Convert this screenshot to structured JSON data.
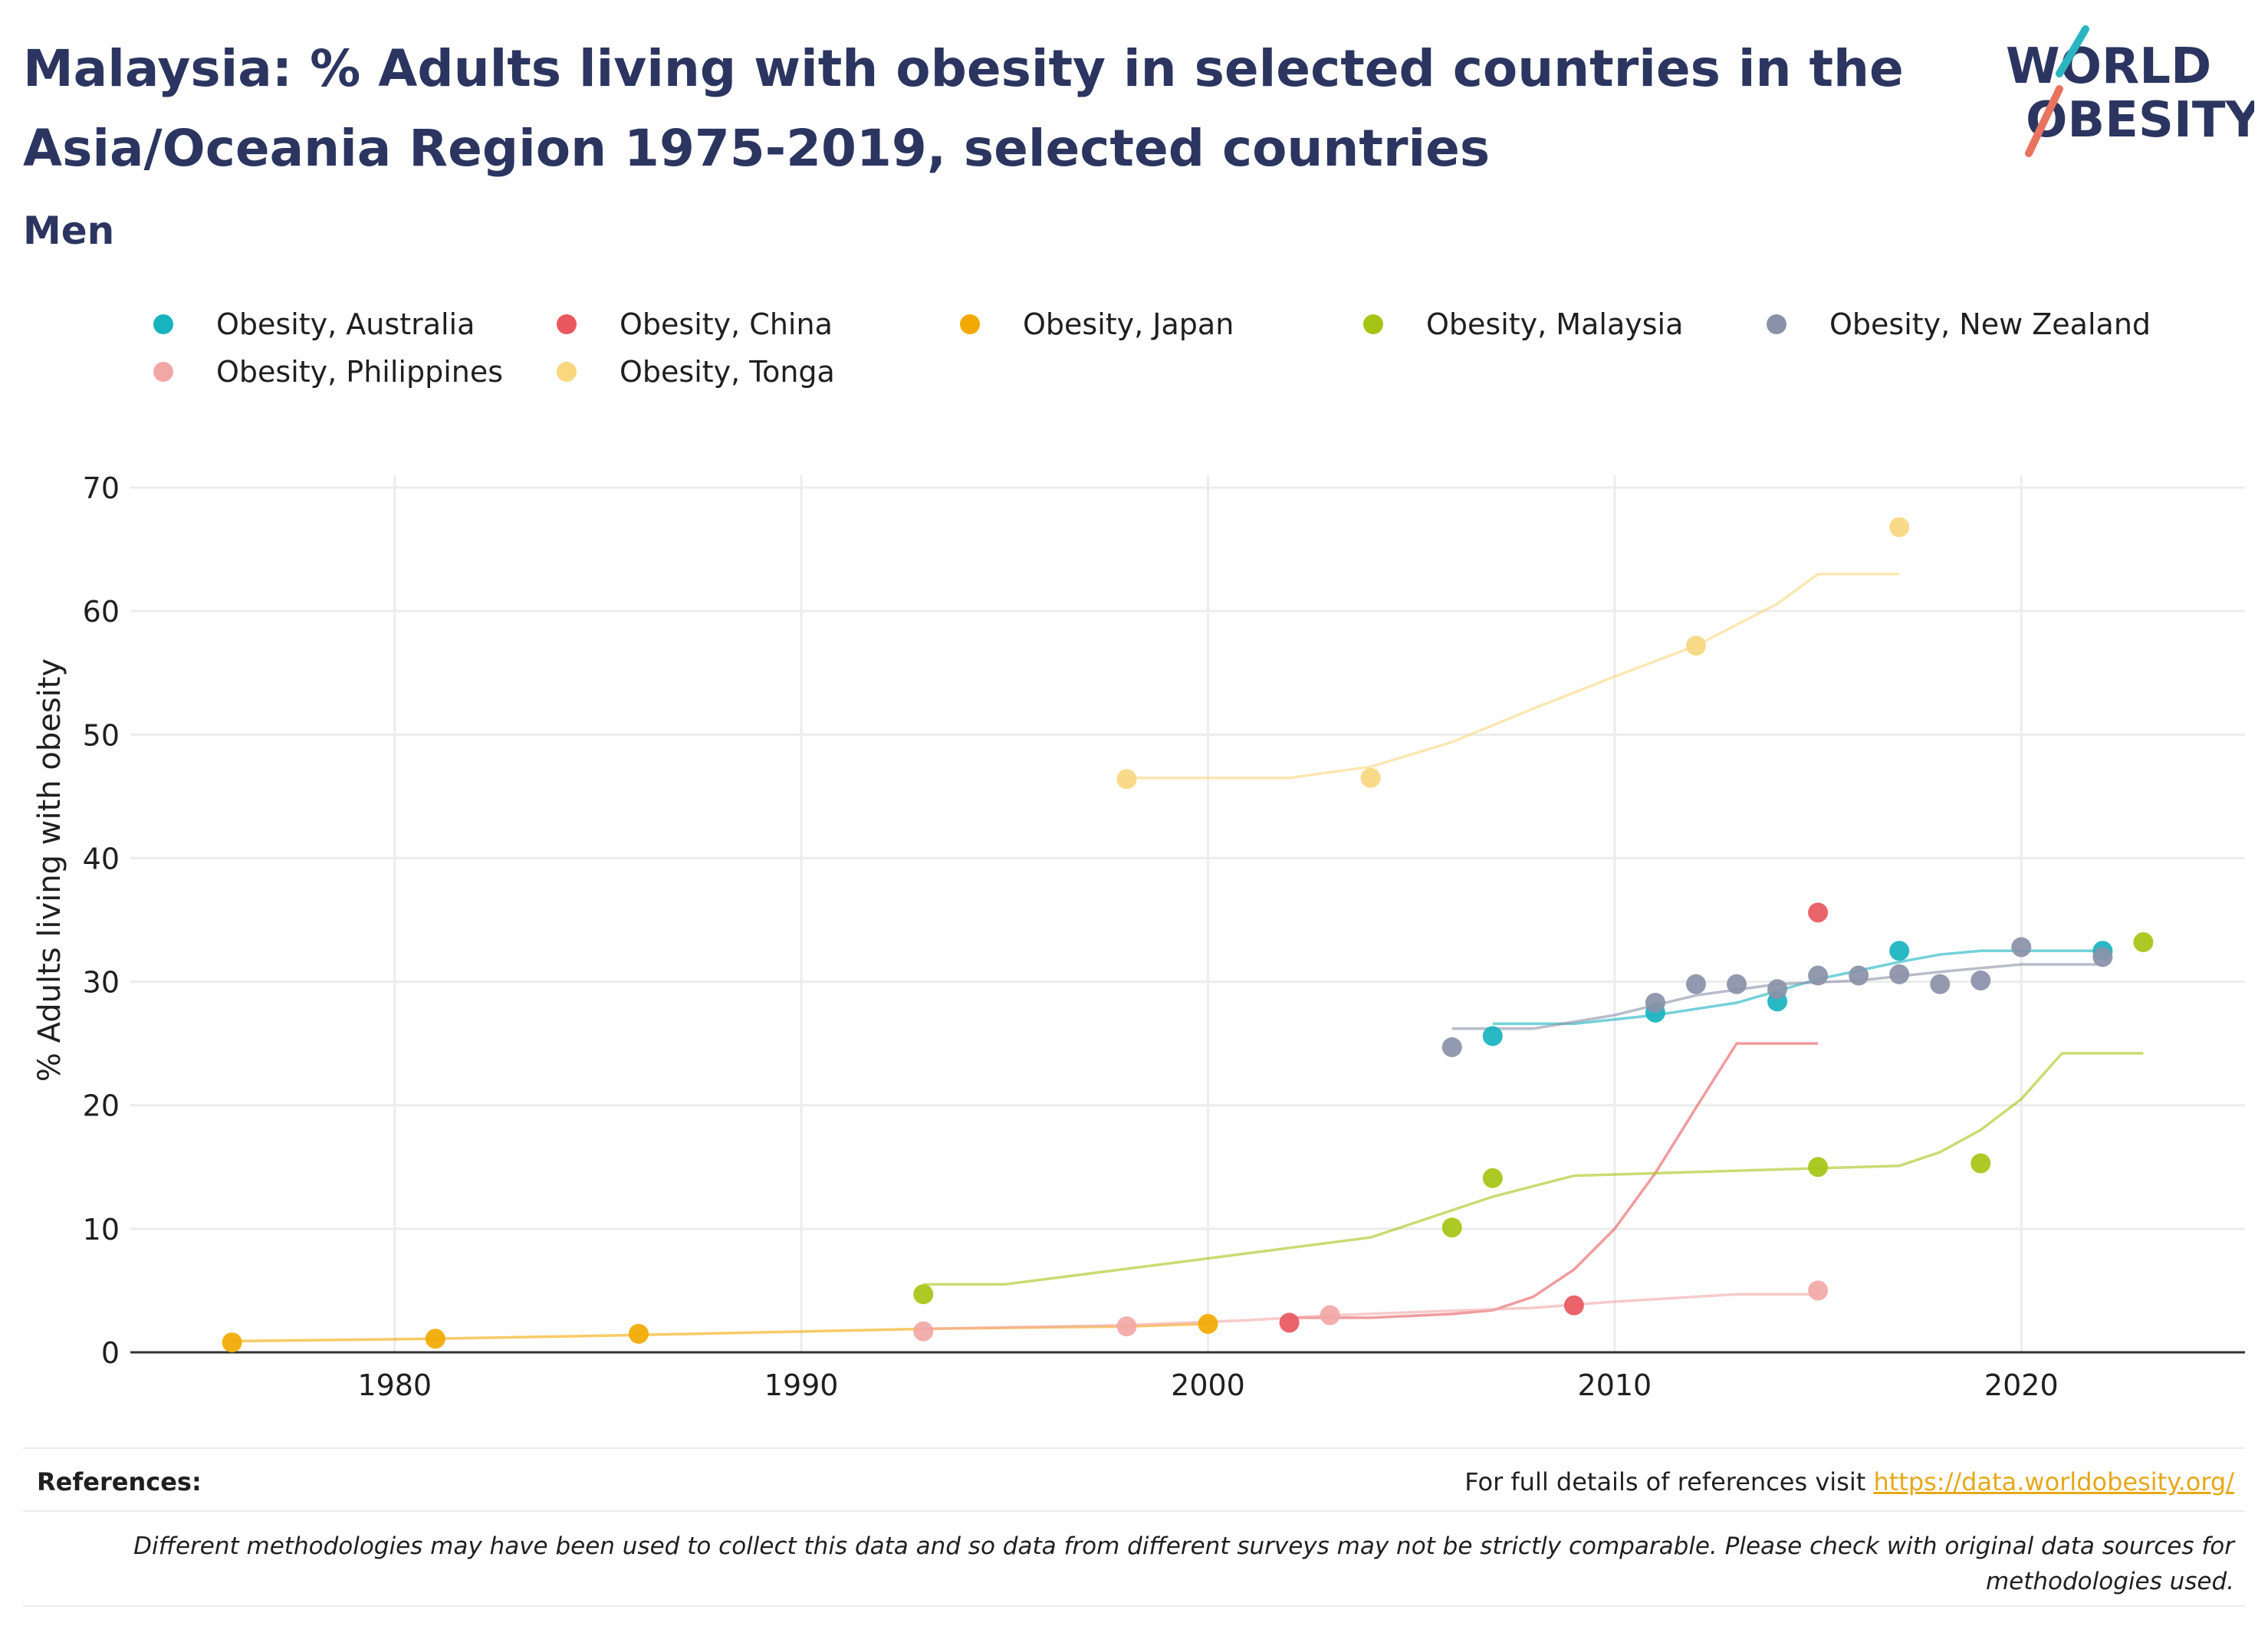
{
  "header": {
    "title": "Malaysia: % Adults living with obesity in selected countries in the Asia/Oceania Region 1975-2019, selected countries",
    "subtitle": "Men",
    "logo_line1": "WORLD",
    "logo_line2": "OBESITY"
  },
  "footer": {
    "references_label": "References:",
    "references_text": "For full details of references visit",
    "references_link": "https://data.worldobesity.org/",
    "disclaimer": "Different methodologies may have been used to collect this data and so data from different surveys may not be strictly comparable. Please check with original data sources for methodologies used."
  },
  "colors": {
    "title": "#2b3560",
    "grid": "#ececec",
    "axis": "#333333",
    "logo_accent_teal": "#2bb5c0",
    "logo_accent_coral": "#e8735f"
  },
  "chart_data": {
    "type": "scatter",
    "title": "",
    "xlabel": "",
    "ylabel": "% Adults living with obesity",
    "xlim": [
      1973.5,
      2025.5
    ],
    "ylim": [
      0,
      70
    ],
    "xticks": [
      1980,
      1990,
      2000,
      2010,
      2020
    ],
    "yticks": [
      0,
      10,
      20,
      30,
      40,
      50,
      60,
      70
    ],
    "grid": true,
    "legend_position": "top",
    "series": [
      {
        "name": "Obesity, Australia",
        "color": "#17b3bf",
        "points": [
          [
            2007,
            25.6
          ],
          [
            2011,
            27.5
          ],
          [
            2014,
            28.4
          ],
          [
            2017,
            32.5
          ],
          [
            2022,
            32.5
          ]
        ],
        "trend": [
          [
            2007,
            26.6
          ],
          [
            2009,
            26.6
          ],
          [
            2011,
            27.3
          ],
          [
            2013,
            28.3
          ],
          [
            2015,
            30.2
          ],
          [
            2017,
            31.6
          ],
          [
            2018,
            32.2
          ],
          [
            2019,
            32.5
          ],
          [
            2022,
            32.5
          ]
        ]
      },
      {
        "name": "Obesity, China",
        "color": "#e8585e",
        "points": [
          [
            2002,
            2.4
          ],
          [
            2009,
            3.8
          ],
          [
            2015,
            35.6
          ]
        ],
        "trend": [
          [
            2002,
            2.8
          ],
          [
            2004,
            2.8
          ],
          [
            2006,
            3.1
          ],
          [
            2007,
            3.4
          ],
          [
            2008,
            4.5
          ],
          [
            2009,
            6.7
          ],
          [
            2010,
            10.0
          ],
          [
            2011,
            14.5
          ],
          [
            2012,
            19.8
          ],
          [
            2013,
            25.0
          ],
          [
            2015,
            25.0
          ]
        ]
      },
      {
        "name": "Obesity, Japan",
        "color": "#f2a900",
        "points": [
          [
            1976,
            0.8
          ],
          [
            1981,
            1.1
          ],
          [
            1986,
            1.5
          ],
          [
            2000,
            2.3
          ]
        ],
        "trend": [
          [
            1976,
            0.9
          ],
          [
            1981,
            1.1
          ],
          [
            1986,
            1.4
          ],
          [
            1993,
            1.9
          ],
          [
            1998,
            2.1
          ],
          [
            2000,
            2.3
          ]
        ]
      },
      {
        "name": "Obesity, Malaysia",
        "color": "#a5c414",
        "points": [
          [
            1993,
            4.7
          ],
          [
            2006,
            10.1
          ],
          [
            2007,
            14.1
          ],
          [
            2015,
            15.0
          ],
          [
            2019,
            15.3
          ],
          [
            2023,
            33.2
          ]
        ],
        "trend": [
          [
            1993,
            5.5
          ],
          [
            1995,
            5.5
          ],
          [
            2000,
            7.6
          ],
          [
            2004,
            9.3
          ],
          [
            2006,
            11.5
          ],
          [
            2007,
            12.6
          ],
          [
            2009,
            14.3
          ],
          [
            2013,
            14.7
          ],
          [
            2015,
            14.9
          ],
          [
            2017,
            15.1
          ],
          [
            2018,
            16.2
          ],
          [
            2019,
            18.0
          ],
          [
            2020,
            20.5
          ],
          [
            2021,
            24.2
          ],
          [
            2023,
            24.2
          ]
        ]
      },
      {
        "name": "Obesity, New Zealand",
        "color": "#8a91a8",
        "points": [
          [
            2006,
            24.7
          ],
          [
            2011,
            28.3
          ],
          [
            2012,
            29.8
          ],
          [
            2013,
            29.8
          ],
          [
            2014,
            29.4
          ],
          [
            2015,
            30.5
          ],
          [
            2016,
            30.5
          ],
          [
            2017,
            30.6
          ],
          [
            2018,
            29.8
          ],
          [
            2019,
            30.1
          ],
          [
            2020,
            32.8
          ],
          [
            2022,
            32.0
          ]
        ],
        "trend": [
          [
            2006,
            26.2
          ],
          [
            2008,
            26.2
          ],
          [
            2010,
            27.3
          ],
          [
            2012,
            28.9
          ],
          [
            2014,
            29.8
          ],
          [
            2016,
            30.1
          ],
          [
            2018,
            30.8
          ],
          [
            2020,
            31.4
          ],
          [
            2022,
            31.4
          ]
        ]
      },
      {
        "name": "Obesity, Philippines",
        "color": "#f2a7a7",
        "points": [
          [
            1993,
            1.7
          ],
          [
            1998,
            2.1
          ],
          [
            2003,
            3.0
          ],
          [
            2015,
            5.0
          ]
        ],
        "trend": [
          [
            1993,
            1.9
          ],
          [
            1998,
            2.2
          ],
          [
            2001,
            2.6
          ],
          [
            2003,
            3.0
          ],
          [
            2008,
            3.6
          ],
          [
            2010,
            4.1
          ],
          [
            2013,
            4.7
          ],
          [
            2015,
            4.7
          ]
        ]
      },
      {
        "name": "Obesity, Tonga",
        "color": "#f9d77e",
        "points": [
          [
            1998,
            46.4
          ],
          [
            2004,
            46.5
          ],
          [
            2012,
            57.2
          ],
          [
            2017,
            66.8
          ]
        ],
        "trend": [
          [
            1998,
            46.5
          ],
          [
            2002,
            46.5
          ],
          [
            2004,
            47.4
          ],
          [
            2006,
            49.4
          ],
          [
            2008,
            52.1
          ],
          [
            2010,
            54.7
          ],
          [
            2012,
            57.2
          ],
          [
            2014,
            60.6
          ],
          [
            2015,
            63.0
          ],
          [
            2017,
            63.0
          ]
        ]
      }
    ]
  }
}
